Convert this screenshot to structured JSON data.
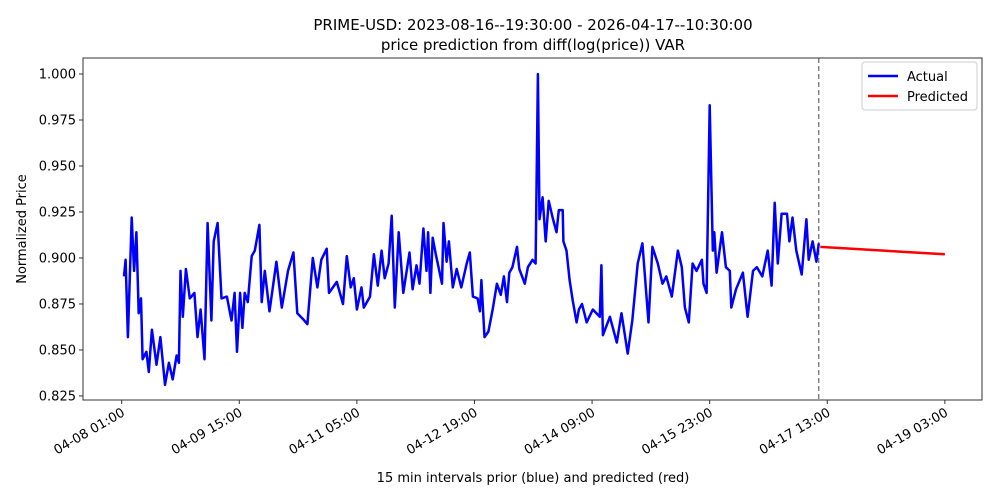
{
  "chart_data": {
    "type": "line",
    "title": "PRIME-USD: 2023-08-16--19:30:00 - 2026-04-17--10:30:00",
    "subtitle": "price prediction from diff(log(price)) VAR",
    "xlabel": "15 min intervals prior (blue) and predicted (red)",
    "ylabel": "Normalized Price",
    "xlim": [
      -50,
      1112
    ],
    "ylim": [
      0.8228,
      1.0087
    ],
    "grid": false,
    "legend_position": "top-right",
    "x_ticks": [
      {
        "value": 0,
        "label": "04-08 01:00"
      },
      {
        "value": 152,
        "label": "04-09 15:00"
      },
      {
        "value": 304,
        "label": "04-11 05:00"
      },
      {
        "value": 456,
        "label": "04-12 19:00"
      },
      {
        "value": 608,
        "label": "04-14 09:00"
      },
      {
        "value": 760,
        "label": "04-15 23:00"
      },
      {
        "value": 912,
        "label": "04-17 13:00"
      },
      {
        "value": 1064,
        "label": "04-19 03:00"
      }
    ],
    "y_ticks": [
      {
        "value": 0.825,
        "label": "0.825"
      },
      {
        "value": 0.85,
        "label": "0.850"
      },
      {
        "value": 0.875,
        "label": "0.875"
      },
      {
        "value": 0.9,
        "label": "0.900"
      },
      {
        "value": 0.925,
        "label": "0.925"
      },
      {
        "value": 0.95,
        "label": "0.950"
      },
      {
        "value": 0.975,
        "label": "0.975"
      },
      {
        "value": 1.0,
        "label": "1.000"
      }
    ],
    "vline_x": 901,
    "series": [
      {
        "name": "Actual",
        "color": "#0000ff",
        "x": [
          3,
          5,
          8,
          13,
          16,
          19,
          22,
          25,
          27,
          32,
          35,
          39,
          45,
          50,
          56,
          61,
          66,
          71,
          74,
          76,
          79,
          83,
          88,
          94,
          98,
          102,
          107,
          111,
          116,
          119,
          124,
          129,
          136,
          142,
          146,
          149,
          153,
          156,
          159,
          163,
          168,
          172,
          178,
          181,
          185,
          191,
          200,
          207,
          215,
          222,
          227,
          234,
          240,
          247,
          253,
          258,
          265,
          268,
          278,
          286,
          291,
          296,
          300,
          304,
          310,
          313,
          321,
          326,
          331,
          336,
          340,
          345,
          349,
          353,
          358,
          364,
          372,
          376,
          381,
          385,
          390,
          394,
          396,
          399,
          402,
          406,
          414,
          416,
          420,
          423,
          428,
          433,
          439,
          446,
          450,
          454,
          460,
          463,
          465,
          469,
          474,
          480,
          485,
          490,
          494,
          498,
          501,
          505,
          511,
          514,
          521,
          525,
          531,
          535,
          538,
          540,
          544,
          548,
          552,
          557,
          562,
          565,
          570,
          571,
          575,
          579,
          583,
          588,
          591,
          595,
          601,
          609,
          618,
          620,
          622,
          631,
          640,
          646,
          654,
          660,
          667,
          673,
          681,
          686,
          693,
          699,
          704,
          711,
          719,
          724,
          728,
          733,
          738,
          743,
          750,
          752,
          756,
          760,
          764,
          766,
          769,
          776,
          781,
          786,
          788,
          794,
          803,
          809,
          816,
          821,
          828,
          835,
          840,
          844,
          848,
          853,
          860,
          863,
          867,
          872,
          879,
          885,
          888,
          893,
          898,
          901
        ],
        "values": [
          0.89,
          0.899,
          0.857,
          0.922,
          0.893,
          0.914,
          0.87,
          0.878,
          0.845,
          0.849,
          0.838,
          0.861,
          0.842,
          0.857,
          0.831,
          0.843,
          0.834,
          0.847,
          0.843,
          0.893,
          0.868,
          0.894,
          0.878,
          0.881,
          0.857,
          0.872,
          0.845,
          0.919,
          0.866,
          0.909,
          0.919,
          0.878,
          0.879,
          0.866,
          0.881,
          0.849,
          0.881,
          0.862,
          0.881,
          0.876,
          0.901,
          0.904,
          0.918,
          0.876,
          0.893,
          0.871,
          0.898,
          0.873,
          0.893,
          0.903,
          0.87,
          0.867,
          0.864,
          0.9,
          0.884,
          0.899,
          0.905,
          0.881,
          0.887,
          0.875,
          0.901,
          0.884,
          0.889,
          0.872,
          0.884,
          0.873,
          0.879,
          0.902,
          0.885,
          0.904,
          0.889,
          0.897,
          0.923,
          0.873,
          0.914,
          0.881,
          0.903,
          0.883,
          0.896,
          0.886,
          0.916,
          0.893,
          0.914,
          0.881,
          0.911,
          0.902,
          0.886,
          0.919,
          0.898,
          0.909,
          0.884,
          0.894,
          0.884,
          0.897,
          0.903,
          0.879,
          0.878,
          0.871,
          0.888,
          0.857,
          0.86,
          0.873,
          0.886,
          0.88,
          0.89,
          0.876,
          0.892,
          0.895,
          0.906,
          0.894,
          0.886,
          0.895,
          0.899,
          0.897,
          1.0,
          0.921,
          0.933,
          0.909,
          0.931,
          0.922,
          0.914,
          0.926,
          0.926,
          0.909,
          0.904,
          0.888,
          0.877,
          0.865,
          0.872,
          0.875,
          0.865,
          0.872,
          0.868,
          0.896,
          0.858,
          0.868,
          0.854,
          0.87,
          0.848,
          0.866,
          0.897,
          0.908,
          0.865,
          0.906,
          0.897,
          0.886,
          0.89,
          0.879,
          0.904,
          0.895,
          0.873,
          0.865,
          0.897,
          0.893,
          0.899,
          0.886,
          0.881,
          0.983,
          0.904,
          0.914,
          0.892,
          0.914,
          0.895,
          0.893,
          0.873,
          0.883,
          0.892,
          0.868,
          0.893,
          0.895,
          0.89,
          0.904,
          0.885,
          0.93,
          0.897,
          0.924,
          0.924,
          0.909,
          0.922,
          0.904,
          0.891,
          0.921,
          0.899,
          0.909,
          0.898,
          0.908
        ]
      },
      {
        "name": "Predicted",
        "color": "#ff0000",
        "x": [
          903,
          1064
        ],
        "values": [
          0.906,
          0.902
        ]
      }
    ]
  }
}
